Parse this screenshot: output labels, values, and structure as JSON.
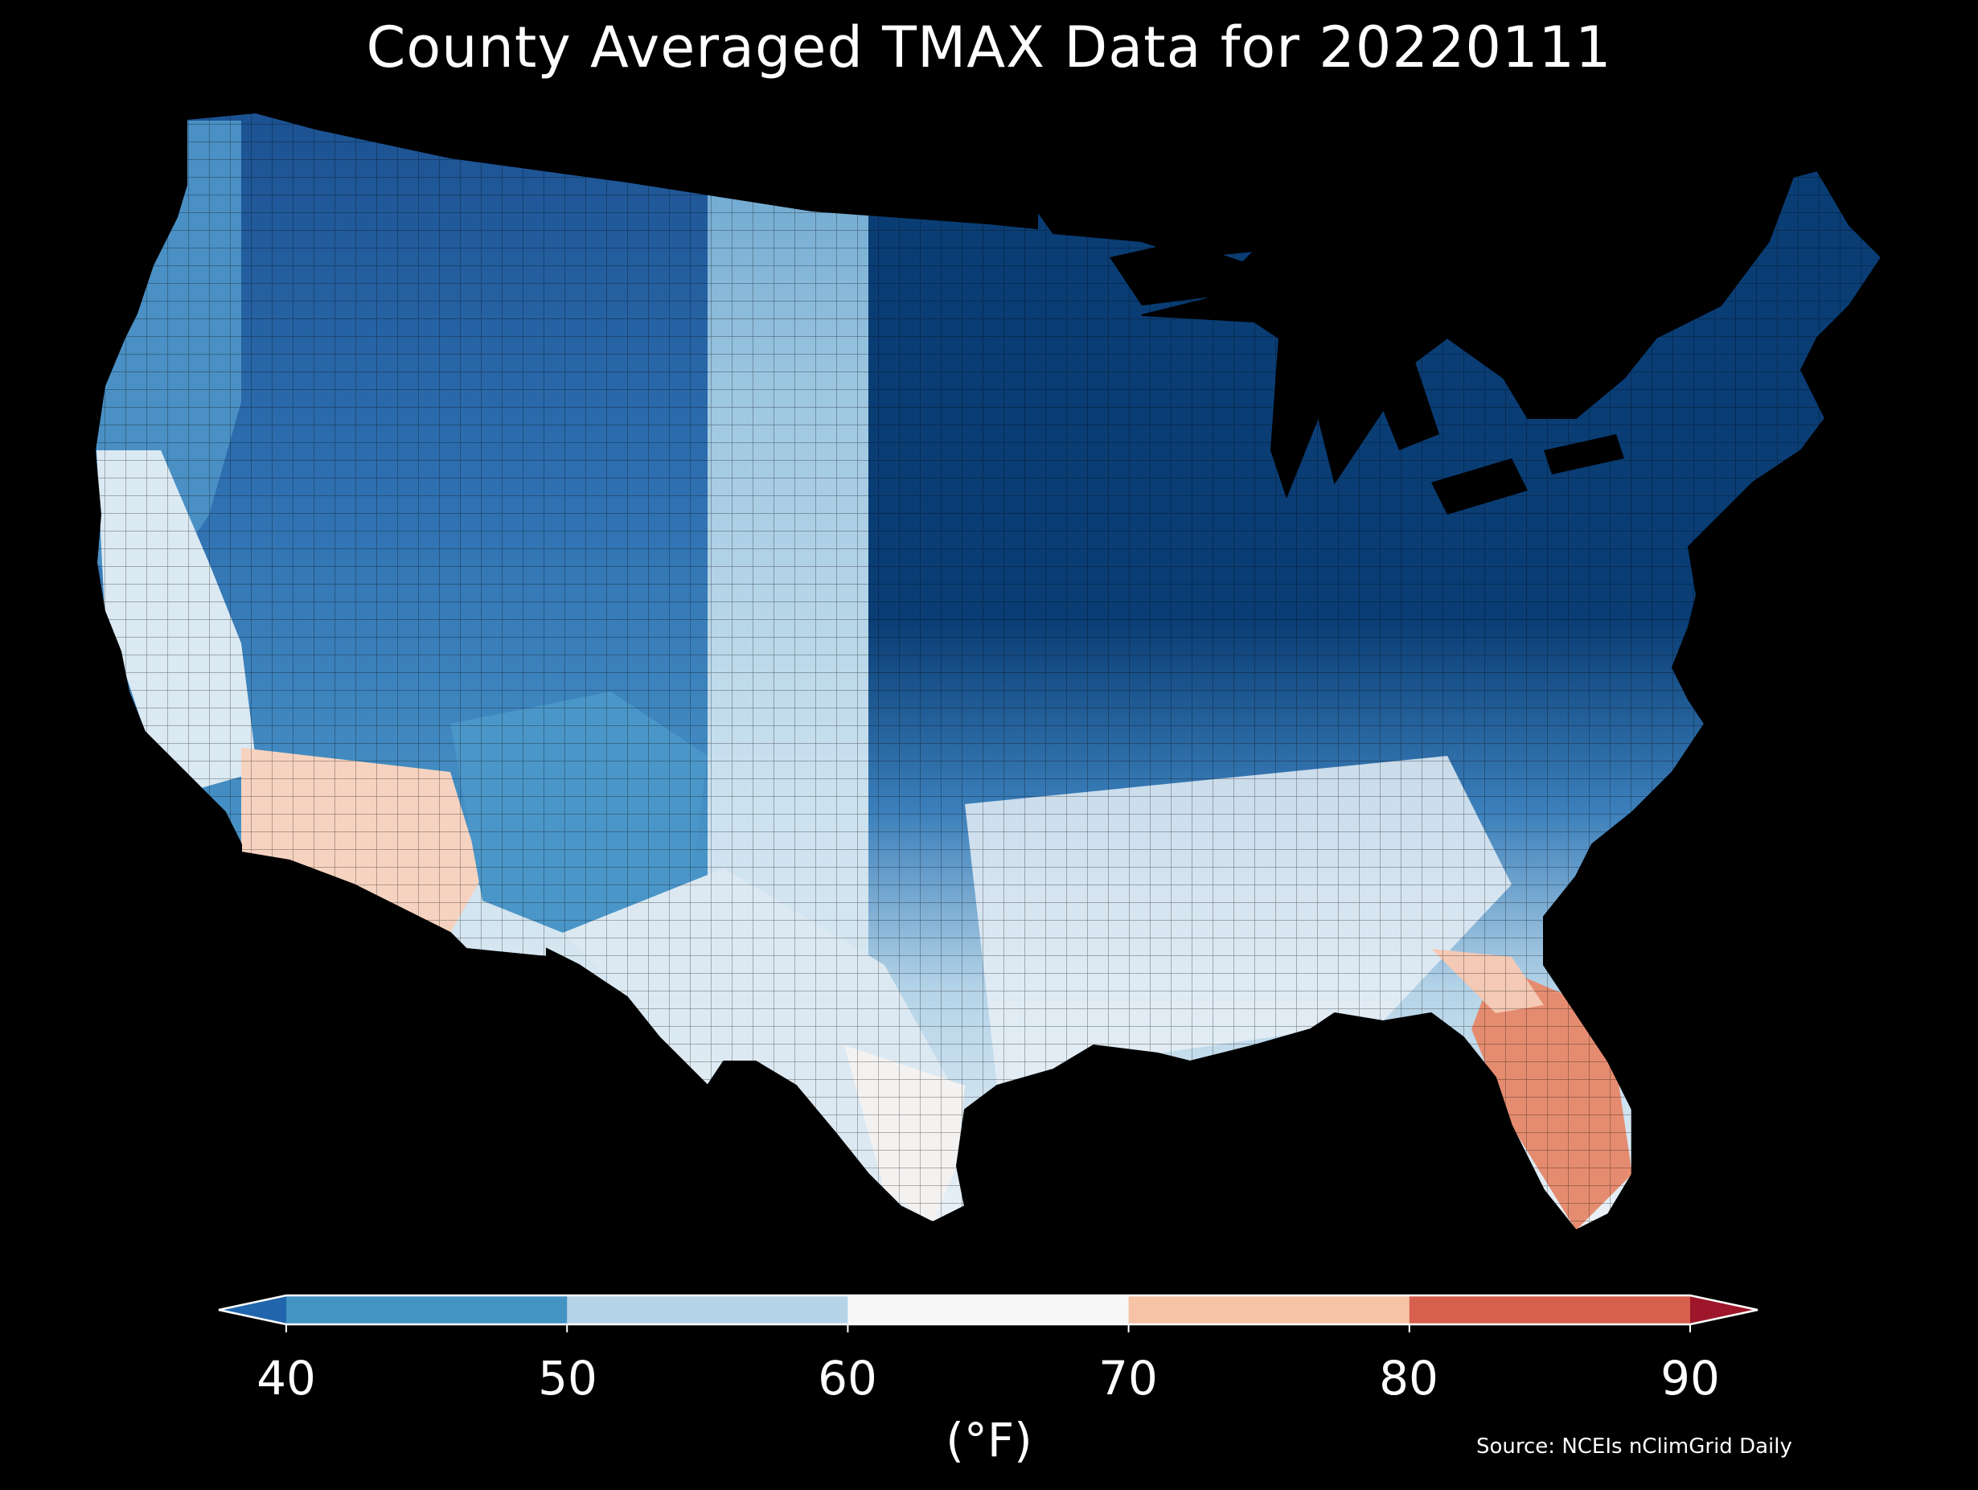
{
  "title": "County Averaged TMAX Data for 20220111",
  "source": "Source: NCEIs nClimGrid Daily",
  "colorbar": {
    "unit_label": "(°F)",
    "ticks": [
      "40",
      "50",
      "60",
      "70",
      "80",
      "90"
    ],
    "bins": [
      {
        "range": "<40",
        "color": "#2166ac"
      },
      {
        "range": "40-50",
        "color": "#4393c3"
      },
      {
        "range": "50-60",
        "color": "#b5d4e8"
      },
      {
        "range": "60-70",
        "color": "#f7f7f7"
      },
      {
        "range": "70-80",
        "color": "#f7c3a7"
      },
      {
        "range": "80-90",
        "color": "#d6604d"
      },
      {
        "range": ">90",
        "color": "#9e1629"
      }
    ]
  },
  "map": {
    "projection": "Lambert conformal (contiguous United States)",
    "background": "#000000",
    "regions": [
      {
        "name": "northern-great-lakes-northeast",
        "tmax_bin": "<40",
        "color": "#0a3d74"
      },
      {
        "name": "northern-rockies",
        "tmax_bin": "<40",
        "color": "#1a4f8f"
      },
      {
        "name": "pacific-northwest-coast",
        "tmax_bin": "40-50",
        "color": "#4a90c4"
      },
      {
        "name": "great-basin",
        "tmax_bin": "40-50",
        "color": "#3f86c0"
      },
      {
        "name": "mid-atlantic-ohio-valley",
        "tmax_bin": "40-50",
        "color": "#3b7fba"
      },
      {
        "name": "southern-rockies",
        "tmax_bin": "40-50",
        "color": "#4b96c8"
      },
      {
        "name": "central-plains",
        "tmax_bin": "50-60",
        "color": "#c2dcec"
      },
      {
        "name": "california-coast",
        "tmax_bin": "50-60",
        "color": "#dbe9f3"
      },
      {
        "name": "deep-south",
        "tmax_bin": "60-70",
        "color": "#eef3f7"
      },
      {
        "name": "south-texas",
        "tmax_bin": "60-70",
        "color": "#f4f2f1"
      },
      {
        "name": "southern-arizona",
        "tmax_bin": "70-80",
        "color": "#f6d3c0"
      },
      {
        "name": "southern-california-desert",
        "tmax_bin": "60-70",
        "color": "#f7ede8"
      },
      {
        "name": "south-florida",
        "tmax_bin": "70-80",
        "color": "#e58c70"
      }
    ]
  }
}
